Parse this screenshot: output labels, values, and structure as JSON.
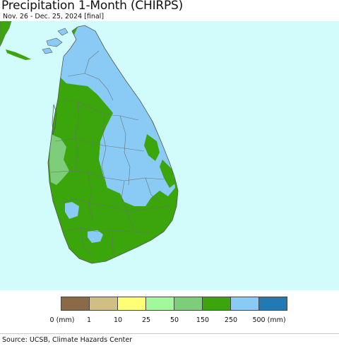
{
  "title": "Precipitation 1-Month (CHIRPS)",
  "subtitle": "Nov. 26 - Dec. 25, 2024 [final]",
  "colors": {
    "ocean": "#d2fbfb",
    "boundary": "#6f6f6f"
  },
  "legend": {
    "colors": [
      "#8a6a47",
      "#cfbf82",
      "#ffff73",
      "#a3f89c",
      "#7dcd7a",
      "#3aa60b",
      "#8acbf6",
      "#217ab4"
    ],
    "labels": [
      "0 (mm)",
      "1",
      "10",
      "25",
      "50",
      "150",
      "250",
      "500 (mm)"
    ]
  },
  "source": "Source: UCSB, Climate Hazards Center"
}
